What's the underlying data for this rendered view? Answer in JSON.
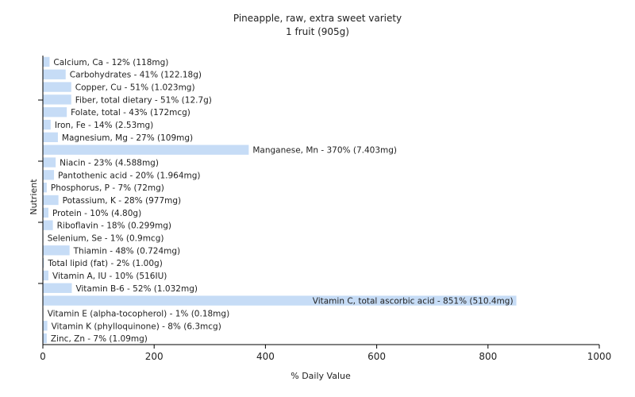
{
  "chart_data": {
    "type": "bar",
    "orientation": "horizontal",
    "title": "Pineapple, raw, extra sweet variety",
    "subtitle": "1 fruit (905g)",
    "xlabel": "% Daily Value",
    "ylabel": "Nutrient",
    "xlim": [
      0,
      1000
    ],
    "xticks": [
      "0",
      "200",
      "400",
      "600",
      "800",
      "1000"
    ],
    "bar_color": "#c6dcf6",
    "grid": false,
    "categories": [
      "Calcium, Ca - 12% (118mg)",
      "Carbohydrates - 41% (122.18g)",
      "Copper, Cu - 51% (1.023mg)",
      "Fiber, total dietary - 51% (12.7g)",
      "Folate, total - 43% (172mcg)",
      "Iron, Fe - 14% (2.53mg)",
      "Magnesium, Mg - 27% (109mg)",
      "Manganese, Mn - 370% (7.403mg)",
      "Niacin - 23% (4.588mg)",
      "Pantothenic acid - 20% (1.964mg)",
      "Phosphorus, P - 7% (72mg)",
      "Potassium, K - 28% (977mg)",
      "Protein - 10% (4.80g)",
      "Riboflavin - 18% (0.299mg)",
      "Selenium, Se - 1% (0.9mcg)",
      "Thiamin - 48% (0.724mg)",
      "Total lipid (fat) - 2% (1.00g)",
      "Vitamin A, IU - 10% (516IU)",
      "Vitamin B-6 - 52% (1.032mg)",
      "Vitamin C, total ascorbic acid - 851% (510.4mg)",
      "Vitamin E (alpha-tocopherol) - 1% (0.18mg)",
      "Vitamin K (phylloquinone) - 8% (6.3mcg)",
      "Zinc, Zn - 7% (1.09mg)"
    ],
    "values": [
      12,
      41,
      51,
      51,
      43,
      14,
      27,
      370,
      23,
      20,
      7,
      28,
      10,
      18,
      1,
      48,
      2,
      10,
      52,
      851,
      1,
      8,
      7
    ]
  }
}
